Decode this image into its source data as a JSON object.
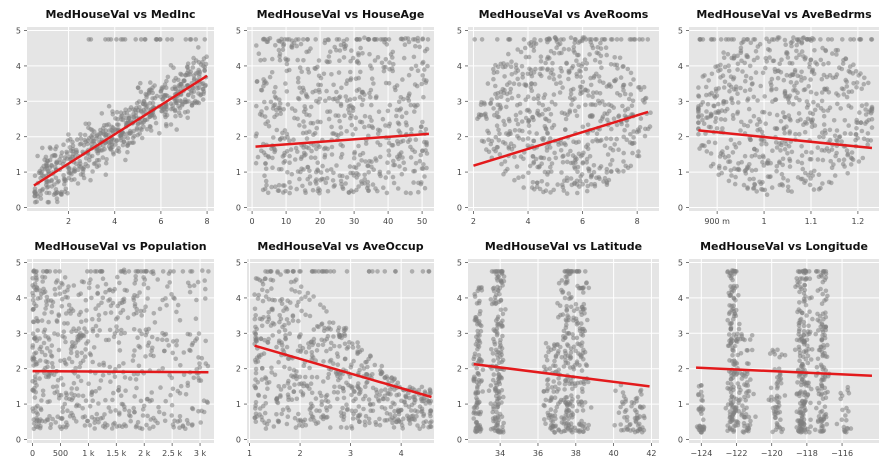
{
  "colors": {
    "panel_bg": "#e5e5e5",
    "grid": "#ffffff",
    "points": "#808080",
    "regression": "#e31a1c"
  },
  "chart_data": [
    {
      "type": "scatter",
      "title": "MedHouseVal vs MedInc",
      "xlim": [
        0.2,
        8.3
      ],
      "ylim": [
        -0.1,
        5.1
      ],
      "xticks": [
        {
          "v": 2,
          "label": "2"
        },
        {
          "v": 4,
          "label": "4"
        },
        {
          "v": 6,
          "label": "6"
        },
        {
          "v": 8,
          "label": "8"
        }
      ],
      "yticks": [
        {
          "v": 0,
          "label": "0"
        },
        {
          "v": 1,
          "label": "1"
        },
        {
          "v": 2,
          "label": "2"
        },
        {
          "v": 3,
          "label": "3"
        },
        {
          "v": 4,
          "label": "4"
        },
        {
          "v": 5,
          "label": "5"
        }
      ],
      "regression": {
        "x": [
          0.5,
          8.0
        ],
        "y": [
          0.62,
          3.72
        ]
      },
      "cloud": {
        "shape": "trend",
        "count": 620,
        "xmin": 0.5,
        "xmax": 8.0,
        "ymin": 0.15,
        "ymax": 4.8,
        "slope": 0.413,
        "intercept": 0.41,
        "spread": 0.75,
        "cap": 4.75
      }
    },
    {
      "type": "scatter",
      "title": "MedHouseVal vs HouseAge",
      "xlim": [
        -1.5,
        53.5
      ],
      "ylim": [
        -0.1,
        5.1
      ],
      "xticks": [
        {
          "v": 0,
          "label": "0"
        },
        {
          "v": 10,
          "label": "10"
        },
        {
          "v": 20,
          "label": "20"
        },
        {
          "v": 30,
          "label": "30"
        },
        {
          "v": 40,
          "label": "40"
        },
        {
          "v": 50,
          "label": "50"
        }
      ],
      "yticks": [
        {
          "v": 0,
          "label": "0"
        },
        {
          "v": 1,
          "label": "1"
        },
        {
          "v": 2,
          "label": "2"
        },
        {
          "v": 3,
          "label": "3"
        },
        {
          "v": 4,
          "label": "4"
        },
        {
          "v": 5,
          "label": "5"
        }
      ],
      "regression": {
        "x": [
          1,
          52
        ],
        "y": [
          1.72,
          2.08
        ]
      },
      "cloud": {
        "shape": "uniform",
        "count": 620,
        "xmin": 1,
        "xmax": 52,
        "ymin": 0.4,
        "ymax": 4.8,
        "cap": 4.75
      }
    },
    {
      "type": "scatter",
      "title": "MedHouseVal vs AveRooms",
      "xlim": [
        1.8,
        8.8
      ],
      "ylim": [
        -0.1,
        5.1
      ],
      "xticks": [
        {
          "v": 2,
          "label": "2"
        },
        {
          "v": 4,
          "label": "4"
        },
        {
          "v": 6,
          "label": "6"
        },
        {
          "v": 8,
          "label": "8"
        }
      ],
      "yticks": [
        {
          "v": 0,
          "label": "0"
        },
        {
          "v": 1,
          "label": "1"
        },
        {
          "v": 2,
          "label": "2"
        },
        {
          "v": 3,
          "label": "3"
        },
        {
          "v": 4,
          "label": "4"
        },
        {
          "v": 5,
          "label": "5"
        }
      ],
      "regression": {
        "x": [
          2.0,
          8.4
        ],
        "y": [
          1.18,
          2.7
        ]
      },
      "cloud": {
        "shape": "ellipse",
        "count": 620,
        "cx": 5.3,
        "cy": 2.6,
        "rx": 3.2,
        "ry": 2.3,
        "xmin": 2.0,
        "xmax": 8.5,
        "ymin": 0.15,
        "ymax": 4.8,
        "cap": 4.75
      }
    },
    {
      "type": "scatter",
      "title": "MedHouseVal vs AveBedrms",
      "xlim": [
        0.84,
        1.245
      ],
      "ylim": [
        -0.1,
        5.1
      ],
      "xticks": [
        {
          "v": 0.9,
          "label": "900 m"
        },
        {
          "v": 1.0,
          "label": "1"
        },
        {
          "v": 1.1,
          "label": "1.1"
        },
        {
          "v": 1.2,
          "label": "1.2"
        }
      ],
      "yticks": [
        {
          "v": 0,
          "label": "0"
        },
        {
          "v": 1,
          "label": "1"
        },
        {
          "v": 2,
          "label": "2"
        },
        {
          "v": 3,
          "label": "3"
        },
        {
          "v": 4,
          "label": "4"
        },
        {
          "v": 5,
          "label": "5"
        }
      ],
      "regression": {
        "x": [
          0.86,
          1.23
        ],
        "y": [
          2.18,
          1.68
        ]
      },
      "cloud": {
        "shape": "ellipse",
        "count": 620,
        "cx": 1.04,
        "cy": 2.6,
        "rx": 0.2,
        "ry": 2.3,
        "xmin": 0.86,
        "xmax": 1.23,
        "ymin": 0.2,
        "ymax": 4.8,
        "cap": 4.75
      }
    },
    {
      "type": "scatter",
      "title": "MedHouseVal vs Population",
      "xlim": [
        -100,
        3250
      ],
      "ylim": [
        -0.1,
        5.1
      ],
      "xticks": [
        {
          "v": 0,
          "label": "0"
        },
        {
          "v": 500,
          "label": "500"
        },
        {
          "v": 1000,
          "label": "1 k"
        },
        {
          "v": 1500,
          "label": "1.5 k"
        },
        {
          "v": 2000,
          "label": "2 k"
        },
        {
          "v": 2500,
          "label": "2.5 k"
        },
        {
          "v": 3000,
          "label": "3 k"
        }
      ],
      "yticks": [
        {
          "v": 0,
          "label": "0"
        },
        {
          "v": 1,
          "label": "1"
        },
        {
          "v": 2,
          "label": "2"
        },
        {
          "v": 3,
          "label": "3"
        },
        {
          "v": 4,
          "label": "4"
        },
        {
          "v": 5,
          "label": "5"
        }
      ],
      "regression": {
        "x": [
          0,
          3150
        ],
        "y": [
          1.93,
          1.9
        ]
      },
      "cloud": {
        "shape": "skew",
        "count": 620,
        "xmin": 0,
        "xmax": 3150,
        "ymin": 0.3,
        "ymax": 4.8,
        "cap": 4.75
      }
    },
    {
      "type": "scatter",
      "title": "MedHouseVal vs AveOccup",
      "xlim": [
        0.95,
        4.65
      ],
      "ylim": [
        -0.1,
        5.1
      ],
      "xticks": [
        {
          "v": 1,
          "label": "1"
        },
        {
          "v": 2,
          "label": "2"
        },
        {
          "v": 3,
          "label": "3"
        },
        {
          "v": 4,
          "label": "4"
        }
      ],
      "yticks": [
        {
          "v": 0,
          "label": "0"
        },
        {
          "v": 1,
          "label": "1"
        },
        {
          "v": 2,
          "label": "2"
        },
        {
          "v": 3,
          "label": "3"
        },
        {
          "v": 4,
          "label": "4"
        },
        {
          "v": 5,
          "label": "5"
        }
      ],
      "regression": {
        "x": [
          1.1,
          4.6
        ],
        "y": [
          2.65,
          1.2
        ]
      },
      "cloud": {
        "shape": "decay",
        "count": 620,
        "xmin": 1.1,
        "xmax": 4.6,
        "ymin": 0.3,
        "ymax": 4.8,
        "cap": 4.75
      }
    },
    {
      "type": "scatter",
      "title": "MedHouseVal vs Latitude",
      "xlim": [
        32.3,
        42.4
      ],
      "ylim": [
        -0.1,
        5.1
      ],
      "xticks": [
        {
          "v": 34,
          "label": "34"
        },
        {
          "v": 36,
          "label": "36"
        },
        {
          "v": 38,
          "label": "38"
        },
        {
          "v": 40,
          "label": "40"
        },
        {
          "v": 42,
          "label": "42"
        }
      ],
      "yticks": [
        {
          "v": 0,
          "label": "0"
        },
        {
          "v": 1,
          "label": "1"
        },
        {
          "v": 2,
          "label": "2"
        },
        {
          "v": 3,
          "label": "3"
        },
        {
          "v": 4,
          "label": "4"
        },
        {
          "v": 5,
          "label": "5"
        }
      ],
      "regression": {
        "x": [
          32.6,
          41.9
        ],
        "y": [
          2.13,
          1.5
        ]
      },
      "cloud": {
        "shape": "clusters",
        "count": 640,
        "centers": [
          32.8,
          33.9,
          36.8,
          37.6,
          38.3,
          40.5,
          41.3
        ],
        "weights": [
          1.4,
          2.4,
          0.9,
          2.2,
          1.3,
          0.4,
          0.5
        ],
        "width": [
          0.25,
          0.35,
          0.5,
          0.45,
          0.35,
          0.4,
          0.35
        ],
        "tops": [
          4.3,
          4.8,
          2.8,
          4.8,
          4.5,
          1.6,
          1.5
        ],
        "xmin": 32.6,
        "xmax": 42.0,
        "ymin": 0.2,
        "ymax": 4.8,
        "cap": 4.75
      }
    },
    {
      "type": "scatter",
      "title": "MedHouseVal vs Longitude",
      "xlim": [
        -124.7,
        -113.9
      ],
      "ylim": [
        -0.1,
        5.1
      ],
      "xticks": [
        {
          "v": -124,
          "label": "−124"
        },
        {
          "v": -122,
          "label": "−122"
        },
        {
          "v": -120,
          "label": "−120"
        },
        {
          "v": -118,
          "label": "−118"
        },
        {
          "v": -116,
          "label": "−116"
        }
      ],
      "yticks": [
        {
          "v": 0,
          "label": "0"
        },
        {
          "v": 1,
          "label": "1"
        },
        {
          "v": 2,
          "label": "2"
        },
        {
          "v": 3,
          "label": "3"
        },
        {
          "v": 4,
          "label": "4"
        },
        {
          "v": 5,
          "label": "5"
        }
      ],
      "regression": {
        "x": [
          -124.3,
          -114.3
        ],
        "y": [
          2.03,
          1.8
        ]
      },
      "cloud": {
        "shape": "clusters",
        "count": 640,
        "centers": [
          -124.0,
          -122.2,
          -121.5,
          -119.7,
          -118.2,
          -117.1,
          -115.8
        ],
        "weights": [
          0.5,
          2.3,
          0.9,
          0.7,
          2.5,
          1.4,
          0.3
        ],
        "width": [
          0.2,
          0.35,
          0.4,
          0.4,
          0.4,
          0.35,
          0.4
        ],
        "tops": [
          1.8,
          4.8,
          3.0,
          2.6,
          4.8,
          4.8,
          1.5
        ],
        "xmin": -124.4,
        "xmax": -114.4,
        "ymin": 0.2,
        "ymax": 4.8,
        "cap": 4.75
      }
    }
  ]
}
